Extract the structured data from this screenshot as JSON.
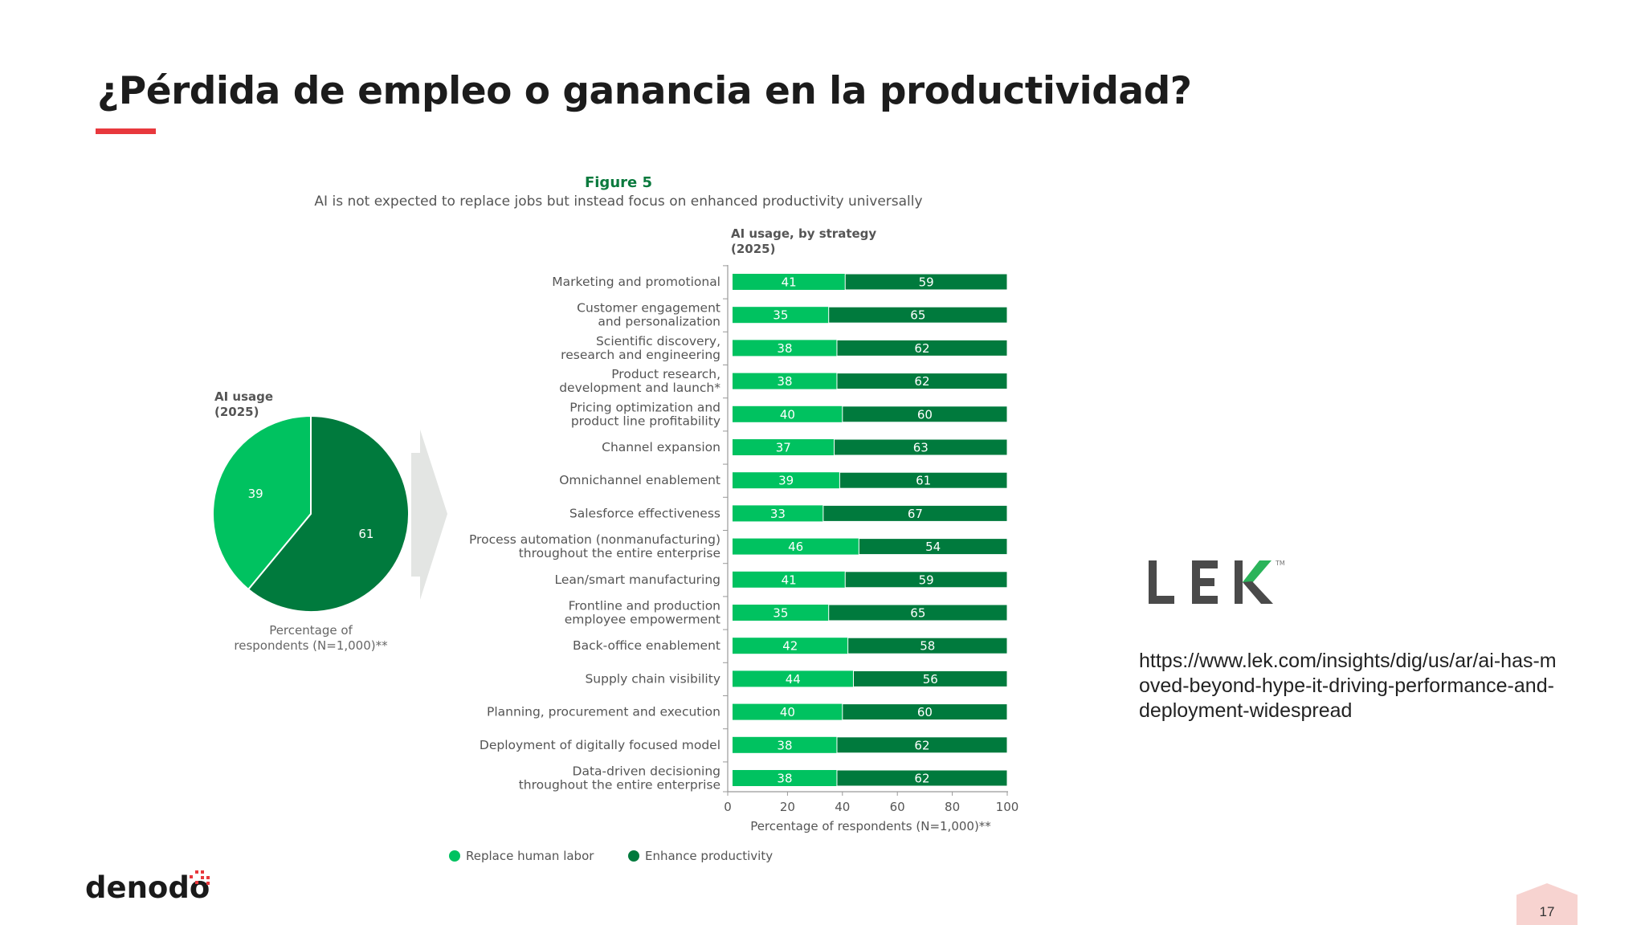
{
  "slide": {
    "title": "¿Pérdida de empleo o ganancia en la productividad?",
    "source_url": "https://www.lek.com/insights/dig/us/ar/ai-has-moved-beyond-hype-it-driving-performance-and-deployment-widespread",
    "page_number": "17",
    "brand_logo": "denodo",
    "partner_logo": "LEK",
    "partner_logo_tm": "TM",
    "accent_color": "#e8383d"
  },
  "chart_data": [
    {
      "type": "pie",
      "figure_label": "Figure 5",
      "title": "AI is not expected to replace jobs but instead focus on enhanced productivity universally",
      "subtitle": [
        "AI usage",
        "(2025)"
      ],
      "slices": [
        {
          "name": "Replace human labor",
          "value": 39,
          "color": "#00c260"
        },
        {
          "name": "Enhance productivity",
          "value": 61,
          "color": "#007a3d"
        }
      ],
      "caption": [
        "Percentage of",
        "respondents (N=1,000)**"
      ]
    },
    {
      "type": "bar",
      "orientation": "horizontal",
      "stacked": true,
      "title": [
        "AI usage, by strategy",
        "(2025)"
      ],
      "xlabel": "Percentage of respondents (N=1,000)**",
      "xlim": [
        0,
        100
      ],
      "xticks": [
        "0",
        "20",
        "40",
        "60",
        "80",
        "100"
      ],
      "categories": [
        [
          "Marketing and promotional"
        ],
        [
          "Customer engagement",
          "and personalization"
        ],
        [
          "Scientific discovery,",
          "research and engineering"
        ],
        [
          "Product research,",
          "development and launch*"
        ],
        [
          "Pricing optimization and",
          "product line profitability"
        ],
        [
          "Channel expansion"
        ],
        [
          "Omnichannel enablement"
        ],
        [
          "Salesforce effectiveness"
        ],
        [
          "Process automation (nonmanufacturing)",
          "throughout the entire enterprise"
        ],
        [
          "Lean/smart manufacturing"
        ],
        [
          "Frontline and production",
          "employee empowerment"
        ],
        [
          "Back-office enablement"
        ],
        [
          "Supply chain visibility"
        ],
        [
          "Planning, procurement and execution"
        ],
        [
          "Deployment of digitally focused model"
        ],
        [
          "Data-driven decisioning",
          "throughout the entire enterprise"
        ]
      ],
      "series": [
        {
          "name": "Replace human labor",
          "color": "#00c260",
          "values": [
            41,
            35,
            38,
            38,
            40,
            37,
            39,
            33,
            46,
            41,
            35,
            42,
            44,
            40,
            38,
            38
          ]
        },
        {
          "name": "Enhance productivity",
          "color": "#007a3d",
          "values": [
            59,
            65,
            62,
            62,
            60,
            63,
            61,
            67,
            54,
            59,
            65,
            58,
            56,
            60,
            62,
            62
          ]
        }
      ],
      "legend": [
        "Replace human labor",
        "Enhance productivity"
      ],
      "legend_position": "bottom"
    }
  ]
}
